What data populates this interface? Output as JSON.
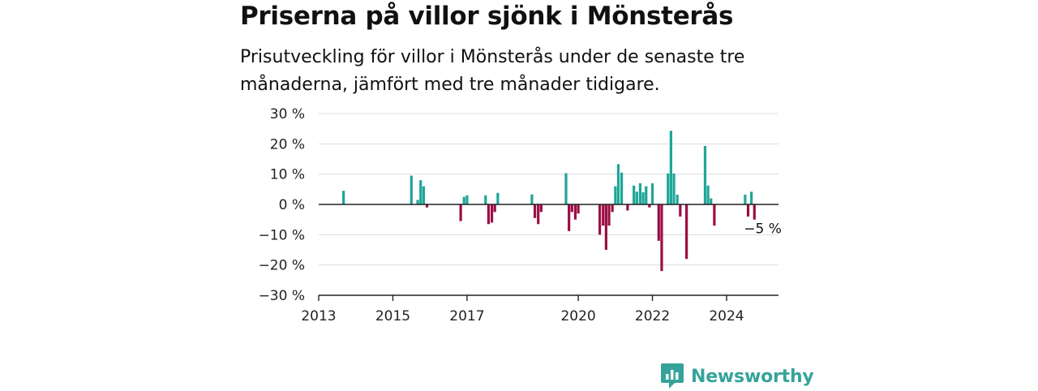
{
  "header": {
    "title": "Priserna på villor sjönk i Mönsterås",
    "subtitle": "Prisutveckling för villor i Mönsterås under de senaste tre månaderna, jämfört med tre månader tidigare."
  },
  "brand": {
    "name": "Newsworthy",
    "color": "#36a39a"
  },
  "chart_data": {
    "type": "bar",
    "title": "",
    "xlabel": "",
    "ylabel": "",
    "ylim": [
      -30,
      30
    ],
    "xlim": [
      2013,
      2025.4
    ],
    "yticks": [
      30,
      20,
      10,
      0,
      -10,
      -20,
      -30
    ],
    "ytick_labels": [
      "30 %",
      "20 %",
      "10 %",
      "0 %",
      "−10 %",
      "−20 %",
      "−30 %"
    ],
    "xticks": [
      2013,
      2015,
      2017,
      2020,
      2022,
      2024
    ],
    "xtick_labels": [
      "2013",
      "2015",
      "2017",
      "2020",
      "2022",
      "2024"
    ],
    "grid": true,
    "colors": {
      "positive": "#1fa598",
      "negative": "#9b0e45",
      "zero_line": "#222222",
      "grid": "#dddddd"
    },
    "annotation": {
      "text": "−5 %",
      "x": 2024.83,
      "y": -5
    },
    "series": [
      {
        "values": [
          {
            "x": 2013.67,
            "y": 4.5
          },
          {
            "x": 2015.5,
            "y": 9.5
          },
          {
            "x": 2015.67,
            "y": 1.5
          },
          {
            "x": 2015.75,
            "y": 8
          },
          {
            "x": 2015.83,
            "y": 6
          },
          {
            "x": 2015.92,
            "y": -1
          },
          {
            "x": 2016.83,
            "y": -5.5
          },
          {
            "x": 2016.92,
            "y": 2.5
          },
          {
            "x": 2017.0,
            "y": 3
          },
          {
            "x": 2017.5,
            "y": 3
          },
          {
            "x": 2017.58,
            "y": -6.5
          },
          {
            "x": 2017.67,
            "y": -6
          },
          {
            "x": 2017.75,
            "y": -2.5
          },
          {
            "x": 2017.83,
            "y": 3.8
          },
          {
            "x": 2018.75,
            "y": 3.3
          },
          {
            "x": 2018.83,
            "y": -4.5
          },
          {
            "x": 2018.92,
            "y": -6.5
          },
          {
            "x": 2019.0,
            "y": -2.5
          },
          {
            "x": 2019.67,
            "y": 10.3
          },
          {
            "x": 2019.75,
            "y": -8.8
          },
          {
            "x": 2019.83,
            "y": -2.5
          },
          {
            "x": 2019.92,
            "y": -5
          },
          {
            "x": 2020.0,
            "y": -3
          },
          {
            "x": 2020.58,
            "y": -10
          },
          {
            "x": 2020.67,
            "y": -7
          },
          {
            "x": 2020.75,
            "y": -15
          },
          {
            "x": 2020.83,
            "y": -7
          },
          {
            "x": 2020.92,
            "y": -2.5
          },
          {
            "x": 2021.0,
            "y": 6
          },
          {
            "x": 2021.08,
            "y": 13.3
          },
          {
            "x": 2021.17,
            "y": 10.5
          },
          {
            "x": 2021.33,
            "y": -2
          },
          {
            "x": 2021.5,
            "y": 6.2
          },
          {
            "x": 2021.58,
            "y": 4.2
          },
          {
            "x": 2021.67,
            "y": 7
          },
          {
            "x": 2021.75,
            "y": 4
          },
          {
            "x": 2021.83,
            "y": 6
          },
          {
            "x": 2021.92,
            "y": -1
          },
          {
            "x": 2022.0,
            "y": 7
          },
          {
            "x": 2022.17,
            "y": -12
          },
          {
            "x": 2022.25,
            "y": -22
          },
          {
            "x": 2022.42,
            "y": 10.2
          },
          {
            "x": 2022.5,
            "y": 24.3
          },
          {
            "x": 2022.58,
            "y": 10.2
          },
          {
            "x": 2022.67,
            "y": 3.2
          },
          {
            "x": 2022.75,
            "y": -4
          },
          {
            "x": 2022.92,
            "y": -18
          },
          {
            "x": 2023.42,
            "y": 19.3
          },
          {
            "x": 2023.5,
            "y": 6.2
          },
          {
            "x": 2023.58,
            "y": 2
          },
          {
            "x": 2023.67,
            "y": -7
          },
          {
            "x": 2024.5,
            "y": 3.2
          },
          {
            "x": 2024.58,
            "y": -4
          },
          {
            "x": 2024.67,
            "y": 4.2
          },
          {
            "x": 2024.75,
            "y": -5
          }
        ]
      }
    ]
  }
}
